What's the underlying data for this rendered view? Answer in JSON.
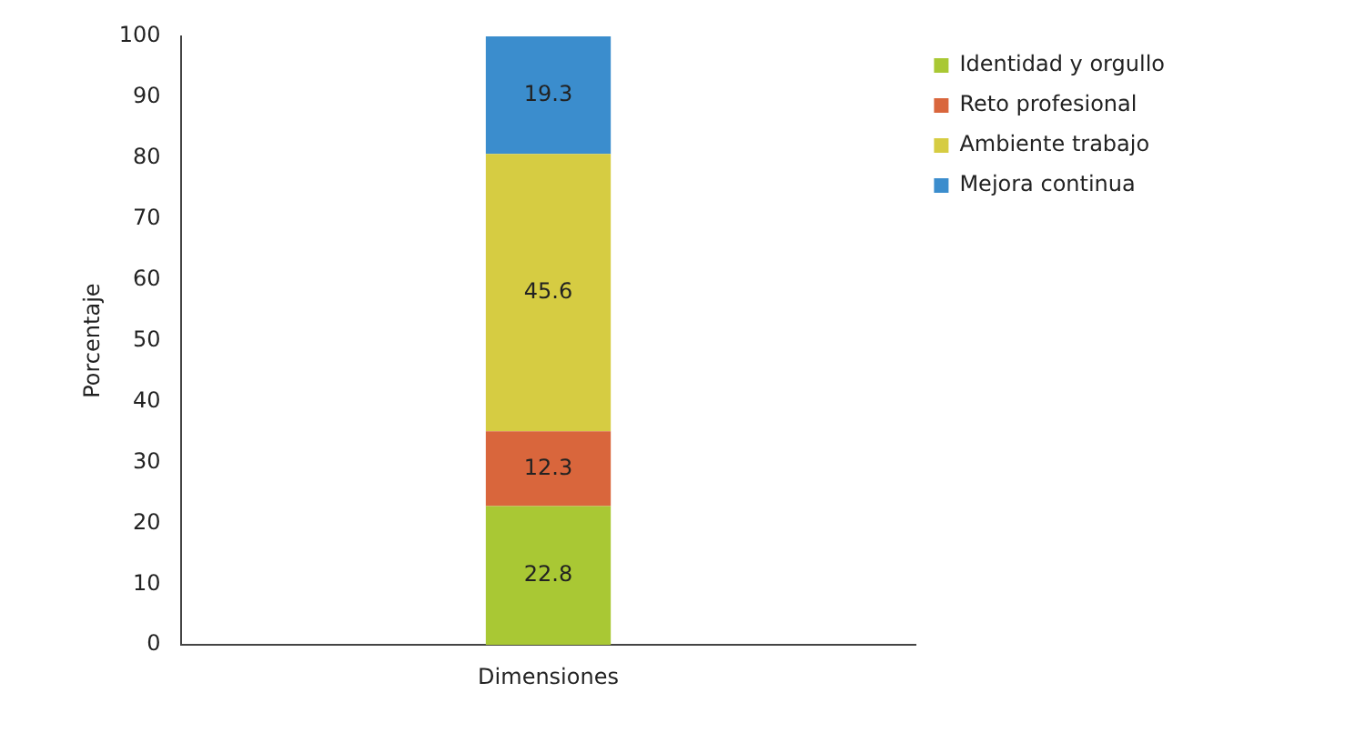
{
  "chart_data": {
    "type": "bar",
    "stacked": true,
    "ylabel": "Porcentaje",
    "categories": [
      "Dimensiones"
    ],
    "series": [
      {
        "name": "Identidad y orgullo",
        "color": "#a9c834",
        "values": [
          22.8
        ]
      },
      {
        "name": "Reto profesional",
        "color": "#d9663c",
        "values": [
          12.3
        ]
      },
      {
        "name": "Ambiente trabajo",
        "color": "#d6cc42",
        "values": [
          45.6
        ]
      },
      {
        "name": "Mejora continua",
        "color": "#3b8dcd",
        "values": [
          19.3
        ]
      }
    ],
    "ylim": [
      0,
      100
    ],
    "yticks": [
      0,
      10,
      20,
      30,
      40,
      50,
      60,
      70,
      80,
      90,
      100
    ],
    "grid": false,
    "legend": "top right",
    "data_labels": true
  }
}
